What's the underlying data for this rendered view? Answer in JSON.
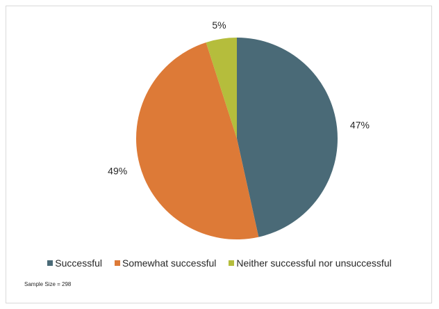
{
  "chart_data": {
    "type": "pie",
    "title": "",
    "categories": [
      "Successful",
      "Somewhat successful",
      "Neither successful nor unsuccessful"
    ],
    "values": [
      47,
      49,
      5
    ],
    "labels": [
      "47%",
      "49%",
      "5%"
    ],
    "colors": [
      "#4a6a77",
      "#dd7a37",
      "#b5bd3c"
    ],
    "legend_position": "bottom",
    "note": "Sample Size = 298"
  }
}
